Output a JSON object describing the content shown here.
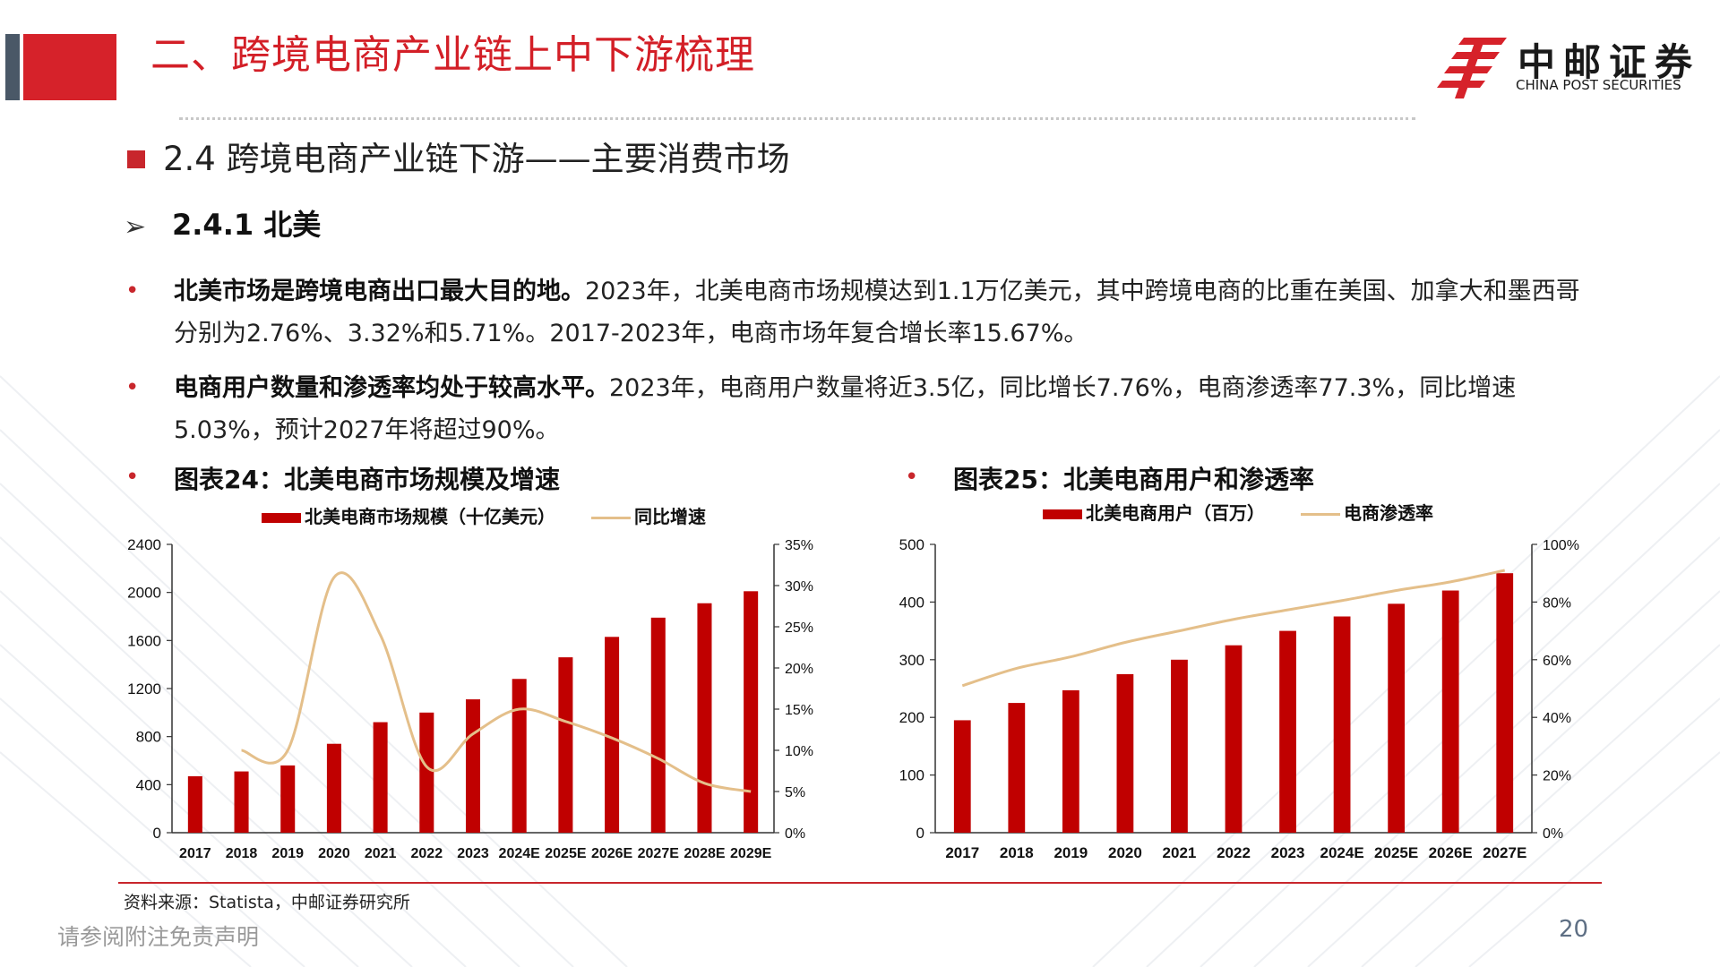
{
  "header": {
    "title": "二、跨境电商产业链上中下游梳理"
  },
  "logo": {
    "cn": "中邮证券",
    "en": "CHINA POST SECURITIES"
  },
  "section": {
    "title": "2.4 跨境电商产业链下游——主要消费市场"
  },
  "subsection": {
    "arrow": "➢",
    "title": "2.4.1 北美"
  },
  "bullet_symbol": "•",
  "paragraphs": [
    {
      "bold": "北美市场是跨境电商出口最大目的地。",
      "text": "2023年，北美电商市场规模达到1.1万亿美元，其中跨境电商的比重在美国、加拿大和墨西哥分别为2.76%、3.32%和5.71%。2017-2023年，电商市场年复合增长率15.67%。"
    },
    {
      "bold": "电商用户数量和渗透率均处于较高水平。",
      "text": "2023年，电商用户数量将近3.5亿，同比增长7.76%，电商渗透率77.3%，同比增速5.03%，预计2027年将超过90%。"
    }
  ],
  "charts": {
    "left": {
      "caption": "图表24：北美电商市场规模及增速",
      "legend_bar": "北美电商市场规模（十亿美元）",
      "legend_line": "同比增速"
    },
    "right": {
      "caption": "图表25：北美电商用户和渗透率",
      "legend_bar": "北美电商用户（百万）",
      "legend_line": "电商渗透率"
    }
  },
  "chart_data": [
    {
      "type": "bar",
      "title": "图表24：北美电商市场规模及增速",
      "categories": [
        "2017",
        "2018",
        "2019",
        "2020",
        "2021",
        "2022",
        "2023",
        "2024E",
        "2025E",
        "2026E",
        "2027E",
        "2028E",
        "2029E"
      ],
      "series": [
        {
          "name": "北美电商市场规模（十亿美元）",
          "type": "bar",
          "axis": "left",
          "values": [
            470,
            510,
            560,
            740,
            920,
            1000,
            1110,
            1280,
            1460,
            1630,
            1790,
            1910,
            2010
          ]
        },
        {
          "name": "同比增速",
          "type": "line",
          "axis": "right",
          "values": [
            null,
            10,
            10,
            31,
            24,
            8,
            12,
            15,
            13.5,
            11.5,
            9,
            6,
            5
          ]
        }
      ],
      "y_left": {
        "lim": [
          0,
          2400
        ],
        "ticks": [
          "0",
          "400",
          "800",
          "1200",
          "1600",
          "2000",
          "2400"
        ]
      },
      "y_right": {
        "lim": [
          0,
          35
        ],
        "ticks": [
          "0%",
          "5%",
          "10%",
          "15%",
          "20%",
          "25%",
          "30%",
          "35%"
        ]
      },
      "colors": {
        "bar": "#c00000",
        "line": "#e4bf8a"
      },
      "legend": "top"
    },
    {
      "type": "bar",
      "title": "图表25：北美电商用户和渗透率",
      "categories": [
        "2017",
        "2018",
        "2019",
        "2020",
        "2021",
        "2022",
        "2023",
        "2024E",
        "2025E",
        "2026E",
        "2027E"
      ],
      "series": [
        {
          "name": "北美电商用户（百万）",
          "type": "bar",
          "axis": "left",
          "values": [
            195,
            225,
            247,
            275,
            300,
            325,
            350,
            375,
            397,
            420,
            450
          ]
        },
        {
          "name": "电商渗透率",
          "type": "line",
          "axis": "right",
          "values": [
            51,
            57,
            61,
            66,
            70,
            74,
            77.3,
            80.5,
            84,
            87,
            91
          ]
        }
      ],
      "y_left": {
        "lim": [
          0,
          500
        ],
        "ticks": [
          "0",
          "100",
          "200",
          "300",
          "400",
          "500"
        ]
      },
      "y_right": {
        "lim": [
          0,
          100
        ],
        "ticks": [
          "0%",
          "20%",
          "40%",
          "60%",
          "80%",
          "100%"
        ]
      },
      "colors": {
        "bar": "#c00000",
        "line": "#e4bf8a"
      },
      "legend": "top"
    }
  ],
  "footer": {
    "source": "资料来源：Statista，中邮证券研究所",
    "disclaimer": "请参阅附注免责声明",
    "page": "20"
  }
}
